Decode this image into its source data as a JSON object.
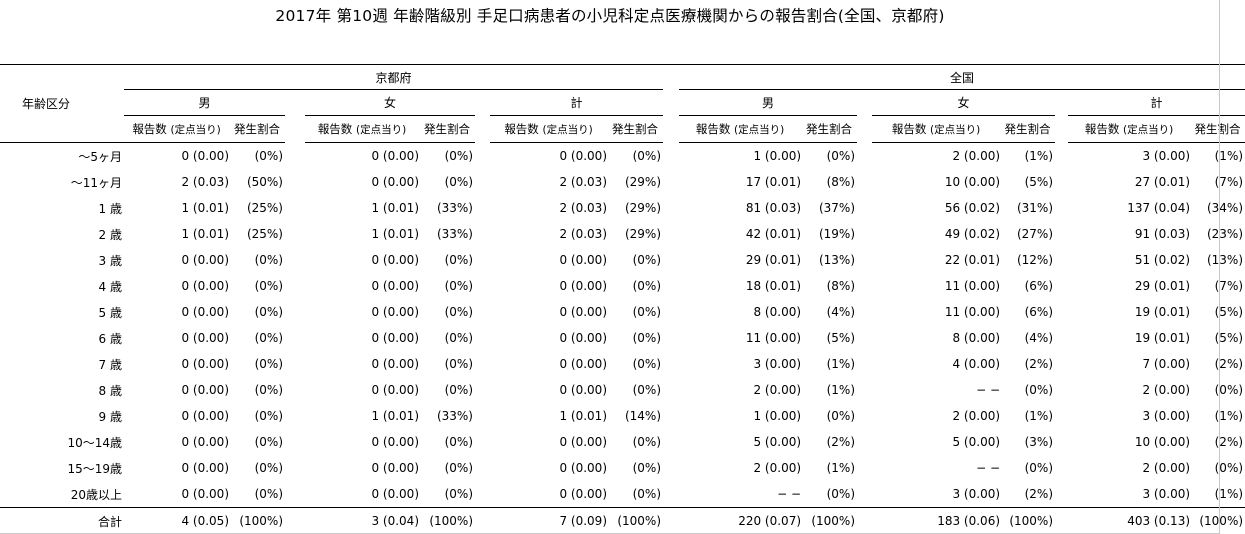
{
  "title": "2017年 第10週 年齢階級別 手足口病患者の小児科定点医療機関からの報告割合(全国、京都府)",
  "header": {
    "age_label": "年齢区分",
    "regions": [
      "京都府",
      "全国"
    ],
    "sexes": [
      "男",
      "女",
      "計"
    ],
    "count_label": "報告数",
    "count_sub": "(定点当り)",
    "rate_label": "発生割合"
  },
  "rows": [
    {
      "age": "〜5ヶ月",
      "cells": [
        [
          "0 (0.00)",
          "(0%)"
        ],
        [
          "0 (0.00)",
          "(0%)"
        ],
        [
          "0 (0.00)",
          "(0%)"
        ],
        [
          "1 (0.00)",
          "(0%)"
        ],
        [
          "2 (0.00)",
          "(1%)"
        ],
        [
          "3 (0.00)",
          "(1%)"
        ]
      ]
    },
    {
      "age": "〜11ヶ月",
      "cells": [
        [
          "2 (0.03)",
          "(50%)"
        ],
        [
          "0 (0.00)",
          "(0%)"
        ],
        [
          "2 (0.03)",
          "(29%)"
        ],
        [
          "17 (0.01)",
          "(8%)"
        ],
        [
          "10 (0.00)",
          "(5%)"
        ],
        [
          "27 (0.01)",
          "(7%)"
        ]
      ]
    },
    {
      "age": "1 歳",
      "cells": [
        [
          "1 (0.01)",
          "(25%)"
        ],
        [
          "1 (0.01)",
          "(33%)"
        ],
        [
          "2 (0.03)",
          "(29%)"
        ],
        [
          "81 (0.03)",
          "(37%)"
        ],
        [
          "56 (0.02)",
          "(31%)"
        ],
        [
          "137 (0.04)",
          "(34%)"
        ]
      ]
    },
    {
      "age": "2 歳",
      "cells": [
        [
          "1 (0.01)",
          "(25%)"
        ],
        [
          "1 (0.01)",
          "(33%)"
        ],
        [
          "2 (0.03)",
          "(29%)"
        ],
        [
          "42 (0.01)",
          "(19%)"
        ],
        [
          "49 (0.02)",
          "(27%)"
        ],
        [
          "91 (0.03)",
          "(23%)"
        ]
      ]
    },
    {
      "age": "3 歳",
      "cells": [
        [
          "0 (0.00)",
          "(0%)"
        ],
        [
          "0 (0.00)",
          "(0%)"
        ],
        [
          "0 (0.00)",
          "(0%)"
        ],
        [
          "29 (0.01)",
          "(13%)"
        ],
        [
          "22 (0.01)",
          "(12%)"
        ],
        [
          "51 (0.02)",
          "(13%)"
        ]
      ]
    },
    {
      "age": "4 歳",
      "cells": [
        [
          "0 (0.00)",
          "(0%)"
        ],
        [
          "0 (0.00)",
          "(0%)"
        ],
        [
          "0 (0.00)",
          "(0%)"
        ],
        [
          "18 (0.01)",
          "(8%)"
        ],
        [
          "11 (0.00)",
          "(6%)"
        ],
        [
          "29 (0.01)",
          "(7%)"
        ]
      ]
    },
    {
      "age": "5 歳",
      "cells": [
        [
          "0 (0.00)",
          "(0%)"
        ],
        [
          "0 (0.00)",
          "(0%)"
        ],
        [
          "0 (0.00)",
          "(0%)"
        ],
        [
          "8 (0.00)",
          "(4%)"
        ],
        [
          "11 (0.00)",
          "(6%)"
        ],
        [
          "19 (0.01)",
          "(5%)"
        ]
      ]
    },
    {
      "age": "6 歳",
      "cells": [
        [
          "0 (0.00)",
          "(0%)"
        ],
        [
          "0 (0.00)",
          "(0%)"
        ],
        [
          "0 (0.00)",
          "(0%)"
        ],
        [
          "11 (0.00)",
          "(5%)"
        ],
        [
          "8 (0.00)",
          "(4%)"
        ],
        [
          "19 (0.01)",
          "(5%)"
        ]
      ]
    },
    {
      "age": "7 歳",
      "cells": [
        [
          "0 (0.00)",
          "(0%)"
        ],
        [
          "0 (0.00)",
          "(0%)"
        ],
        [
          "0 (0.00)",
          "(0%)"
        ],
        [
          "3 (0.00)",
          "(1%)"
        ],
        [
          "4 (0.00)",
          "(2%)"
        ],
        [
          "7 (0.00)",
          "(2%)"
        ]
      ]
    },
    {
      "age": "8 歳",
      "cells": [
        [
          "0 (0.00)",
          "(0%)"
        ],
        [
          "0 (0.00)",
          "(0%)"
        ],
        [
          "0 (0.00)",
          "(0%)"
        ],
        [
          "2 (0.00)",
          "(1%)"
        ],
        [
          "− −",
          "(0%)"
        ],
        [
          "2 (0.00)",
          "(0%)"
        ]
      ]
    },
    {
      "age": "9 歳",
      "cells": [
        [
          "0 (0.00)",
          "(0%)"
        ],
        [
          "1 (0.01)",
          "(33%)"
        ],
        [
          "1 (0.01)",
          "(14%)"
        ],
        [
          "1 (0.00)",
          "(0%)"
        ],
        [
          "2 (0.00)",
          "(1%)"
        ],
        [
          "3 (0.00)",
          "(1%)"
        ]
      ]
    },
    {
      "age": "10〜14歳",
      "cells": [
        [
          "0 (0.00)",
          "(0%)"
        ],
        [
          "0 (0.00)",
          "(0%)"
        ],
        [
          "0 (0.00)",
          "(0%)"
        ],
        [
          "5 (0.00)",
          "(2%)"
        ],
        [
          "5 (0.00)",
          "(3%)"
        ],
        [
          "10 (0.00)",
          "(2%)"
        ]
      ]
    },
    {
      "age": "15〜19歳",
      "cells": [
        [
          "0 (0.00)",
          "(0%)"
        ],
        [
          "0 (0.00)",
          "(0%)"
        ],
        [
          "0 (0.00)",
          "(0%)"
        ],
        [
          "2 (0.00)",
          "(1%)"
        ],
        [
          "− −",
          "(0%)"
        ],
        [
          "2 (0.00)",
          "(0%)"
        ]
      ]
    },
    {
      "age": "20歳以上",
      "cells": [
        [
          "0 (0.00)",
          "(0%)"
        ],
        [
          "0 (0.00)",
          "(0%)"
        ],
        [
          "0 (0.00)",
          "(0%)"
        ],
        [
          "− −",
          "(0%)"
        ],
        [
          "3 (0.00)",
          "(2%)"
        ],
        [
          "3 (0.00)",
          "(1%)"
        ]
      ]
    }
  ],
  "total": {
    "age": "合計",
    "cells": [
      [
        "4 (0.05)",
        "(100%)"
      ],
      [
        "3 (0.04)",
        "(100%)"
      ],
      [
        "7 (0.09)",
        "(100%)"
      ],
      [
        "220 (0.07)",
        "(100%)"
      ],
      [
        "183 (0.06)",
        "(100%)"
      ],
      [
        "403 (0.13)",
        "(100%)"
      ]
    ]
  }
}
